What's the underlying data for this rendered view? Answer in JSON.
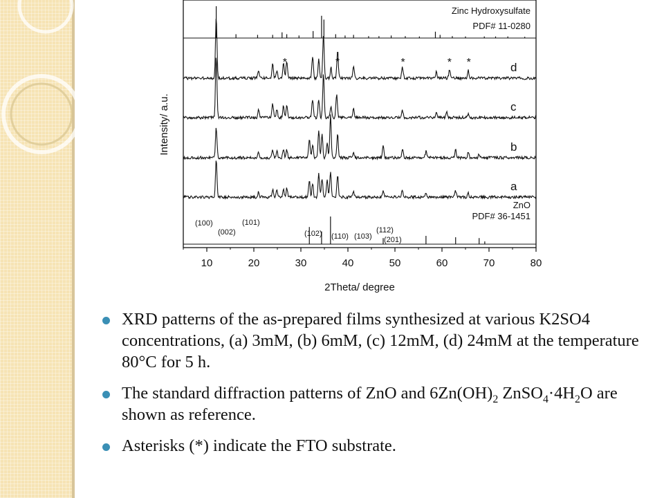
{
  "colors": {
    "sidebar": "#f6e3b4",
    "bullet": "#3a8fb5",
    "ink": "#111111"
  },
  "chart_data": {
    "type": "line",
    "xlabel": "2Theta/ degree",
    "ylabel": "Intensity/ a.u.",
    "xlim": [
      5,
      80
    ],
    "x_ticks": [
      10,
      20,
      30,
      40,
      50,
      60,
      70,
      80
    ],
    "references": [
      {
        "name": "Zinc Hydroxysulfate",
        "pdf": "PDF# 11-0280",
        "peaks": [
          {
            "x": 12.0,
            "h": 1.0
          },
          {
            "x": 16.2,
            "h": 0.12
          },
          {
            "x": 20.8,
            "h": 0.1
          },
          {
            "x": 24.0,
            "h": 0.1
          },
          {
            "x": 26.0,
            "h": 0.18
          },
          {
            "x": 27.0,
            "h": 0.12
          },
          {
            "x": 29.6,
            "h": 0.08
          },
          {
            "x": 32.6,
            "h": 0.22
          },
          {
            "x": 34.4,
            "h": 0.7
          },
          {
            "x": 34.9,
            "h": 0.58
          },
          {
            "x": 37.4,
            "h": 0.12
          },
          {
            "x": 39.4,
            "h": 0.08
          },
          {
            "x": 41.2,
            "h": 0.1
          },
          {
            "x": 44.4,
            "h": 0.06
          },
          {
            "x": 46.6,
            "h": 0.06
          },
          {
            "x": 49.2,
            "h": 0.08
          },
          {
            "x": 52.2,
            "h": 0.06
          },
          {
            "x": 55.2,
            "h": 0.05
          },
          {
            "x": 58.6,
            "h": 0.2
          },
          {
            "x": 59.6,
            "h": 0.1
          },
          {
            "x": 62.2,
            "h": 0.06
          },
          {
            "x": 65.0,
            "h": 0.05
          },
          {
            "x": 69.0,
            "h": 0.05
          },
          {
            "x": 71.4,
            "h": 0.05
          },
          {
            "x": 74.0,
            "h": 0.05
          },
          {
            "x": 77.6,
            "h": 0.04
          }
        ]
      },
      {
        "name": "ZnO",
        "pdf": "PDF# 36-1451",
        "peaks": [
          {
            "x": 31.8,
            "h": 0.62,
            "hkl": "(100)"
          },
          {
            "x": 34.4,
            "h": 0.46,
            "hkl": "(002)"
          },
          {
            "x": 36.3,
            "h": 1.0,
            "hkl": "(101)"
          },
          {
            "x": 47.5,
            "h": 0.22,
            "hkl": "(102)"
          },
          {
            "x": 56.6,
            "h": 0.3,
            "hkl": "(110)"
          },
          {
            "x": 62.9,
            "h": 0.25,
            "hkl": "(103)"
          },
          {
            "x": 67.9,
            "h": 0.22,
            "hkl": "(112)"
          },
          {
            "x": 69.1,
            "h": 0.1,
            "hkl": "(201)"
          }
        ]
      }
    ],
    "series": [
      {
        "name": "d",
        "peaks": [
          {
            "x": 12.0,
            "h": 1.0
          },
          {
            "x": 21.0,
            "h": 0.12
          },
          {
            "x": 24.0,
            "h": 0.22
          },
          {
            "x": 24.9,
            "h": 0.12
          },
          {
            "x": 26.3,
            "h": 0.25
          },
          {
            "x": 27.0,
            "h": 0.28
          },
          {
            "x": 32.5,
            "h": 0.35
          },
          {
            "x": 33.8,
            "h": 0.32
          },
          {
            "x": 34.8,
            "h": 0.72
          },
          {
            "x": 36.4,
            "h": 0.18
          },
          {
            "x": 37.8,
            "h": 0.45
          },
          {
            "x": 41.2,
            "h": 0.18
          },
          {
            "x": 51.6,
            "h": 0.18
          },
          {
            "x": 58.8,
            "h": 0.1
          },
          {
            "x": 61.6,
            "h": 0.12
          },
          {
            "x": 65.6,
            "h": 0.12
          }
        ],
        "markers": [
          {
            "x": 26.6,
            "label": "*"
          },
          {
            "x": 37.8,
            "label": "*"
          },
          {
            "x": 51.7,
            "label": "*"
          },
          {
            "x": 61.6,
            "label": "*"
          },
          {
            "x": 65.7,
            "label": "*"
          }
        ]
      },
      {
        "name": "c",
        "peaks": [
          {
            "x": 12.0,
            "h": 1.0
          },
          {
            "x": 21.0,
            "h": 0.12
          },
          {
            "x": 24.0,
            "h": 0.22
          },
          {
            "x": 24.9,
            "h": 0.14
          },
          {
            "x": 26.3,
            "h": 0.18
          },
          {
            "x": 27.0,
            "h": 0.2
          },
          {
            "x": 32.5,
            "h": 0.3
          },
          {
            "x": 33.8,
            "h": 0.3
          },
          {
            "x": 34.8,
            "h": 0.72
          },
          {
            "x": 36.4,
            "h": 0.18
          },
          {
            "x": 37.6,
            "h": 0.38
          },
          {
            "x": 41.2,
            "h": 0.14
          },
          {
            "x": 51.6,
            "h": 0.12
          },
          {
            "x": 58.8,
            "h": 0.1
          },
          {
            "x": 61.0,
            "h": 0.08
          },
          {
            "x": 65.6,
            "h": 0.06
          }
        ],
        "markers": []
      },
      {
        "name": "b",
        "peaks": [
          {
            "x": 12.0,
            "h": 0.5
          },
          {
            "x": 21.0,
            "h": 0.08
          },
          {
            "x": 24.0,
            "h": 0.12
          },
          {
            "x": 24.9,
            "h": 0.1
          },
          {
            "x": 26.3,
            "h": 0.12
          },
          {
            "x": 27.0,
            "h": 0.14
          },
          {
            "x": 31.8,
            "h": 0.3
          },
          {
            "x": 32.5,
            "h": 0.2
          },
          {
            "x": 33.8,
            "h": 0.45
          },
          {
            "x": 34.5,
            "h": 0.38
          },
          {
            "x": 35.6,
            "h": 0.22
          },
          {
            "x": 36.3,
            "h": 0.68
          },
          {
            "x": 37.8,
            "h": 0.4
          },
          {
            "x": 41.2,
            "h": 0.08
          },
          {
            "x": 47.5,
            "h": 0.22
          },
          {
            "x": 51.6,
            "h": 0.14
          },
          {
            "x": 56.6,
            "h": 0.1
          },
          {
            "x": 62.9,
            "h": 0.14
          },
          {
            "x": 65.6,
            "h": 0.08
          },
          {
            "x": 67.9,
            "h": 0.06
          }
        ],
        "markers": []
      },
      {
        "name": "a",
        "peaks": [
          {
            "x": 12.0,
            "h": 0.62
          },
          {
            "x": 21.0,
            "h": 0.08
          },
          {
            "x": 24.0,
            "h": 0.12
          },
          {
            "x": 24.9,
            "h": 0.1
          },
          {
            "x": 26.3,
            "h": 0.12
          },
          {
            "x": 27.0,
            "h": 0.14
          },
          {
            "x": 31.8,
            "h": 0.28
          },
          {
            "x": 32.5,
            "h": 0.22
          },
          {
            "x": 33.8,
            "h": 0.38
          },
          {
            "x": 34.5,
            "h": 0.3
          },
          {
            "x": 35.6,
            "h": 0.28
          },
          {
            "x": 36.3,
            "h": 0.42
          },
          {
            "x": 37.8,
            "h": 0.36
          },
          {
            "x": 41.2,
            "h": 0.08
          },
          {
            "x": 47.5,
            "h": 0.1
          },
          {
            "x": 51.6,
            "h": 0.12
          },
          {
            "x": 56.6,
            "h": 0.06
          },
          {
            "x": 62.9,
            "h": 0.1
          },
          {
            "x": 65.6,
            "h": 0.06
          }
        ],
        "markers": []
      }
    ]
  }
}
